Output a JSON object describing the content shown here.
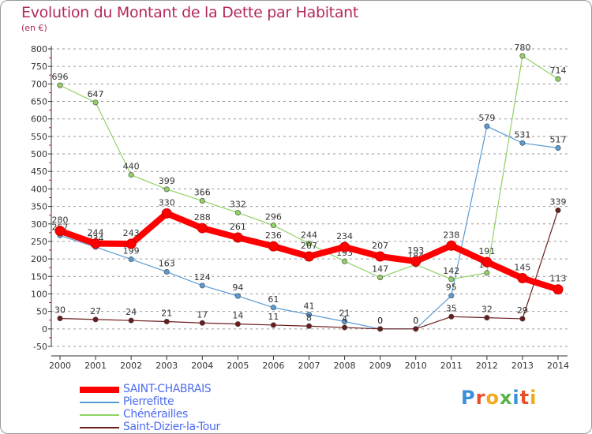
{
  "header": {
    "title": "Evolution du Montant de la Dette par Habitant",
    "subtitle": "(en €)"
  },
  "colors": {
    "title": "#b4285c",
    "legend_text": "#4d6df0",
    "axis": "#333333",
    "grid": "#999999"
  },
  "logo": {
    "text": "Proxiti"
  },
  "chart_data": {
    "type": "line",
    "title": "Evolution du Montant de la Dette par Habitant",
    "subtitle": "(en €)",
    "xlabel": "",
    "ylabel": "",
    "x": [
      "2000",
      "2001",
      "2002",
      "2003",
      "2004",
      "2005",
      "2006",
      "2007",
      "2008",
      "2009",
      "2010",
      "2011",
      "2012",
      "2013",
      "2014"
    ],
    "ylim": [
      -50,
      800
    ],
    "yticks": [
      -50,
      0,
      50,
      100,
      150,
      200,
      250,
      300,
      350,
      400,
      450,
      500,
      550,
      600,
      650,
      700,
      750,
      800
    ],
    "grid": "horizontal dashed",
    "legend_position": "bottom-left",
    "series": [
      {
        "name": "SAINT-CHABRAIS",
        "color": "#ff0000",
        "values": [
          280,
          244,
          243,
          330,
          288,
          261,
          236,
          207,
          234,
          207,
          193,
          238,
          191,
          145,
          113
        ]
      },
      {
        "name": "Pierrefitte",
        "color": "#5b9bd5",
        "values": [
          267,
          234,
          199,
          163,
          124,
          94,
          61,
          41,
          21,
          0,
          0,
          95,
          579,
          531,
          517
        ]
      },
      {
        "name": "Chénérailles",
        "color": "#90d264",
        "values": [
          696,
          647,
          440,
          399,
          366,
          332,
          296,
          244,
          193,
          147,
          184,
          142,
          160,
          780,
          714
        ]
      },
      {
        "name": "Saint-Dizier-la-Tour",
        "color": "#6b1c1c",
        "values": [
          30,
          27,
          24,
          21,
          17,
          14,
          11,
          8,
          4,
          0,
          0,
          35,
          32,
          29,
          339
        ]
      }
    ]
  }
}
